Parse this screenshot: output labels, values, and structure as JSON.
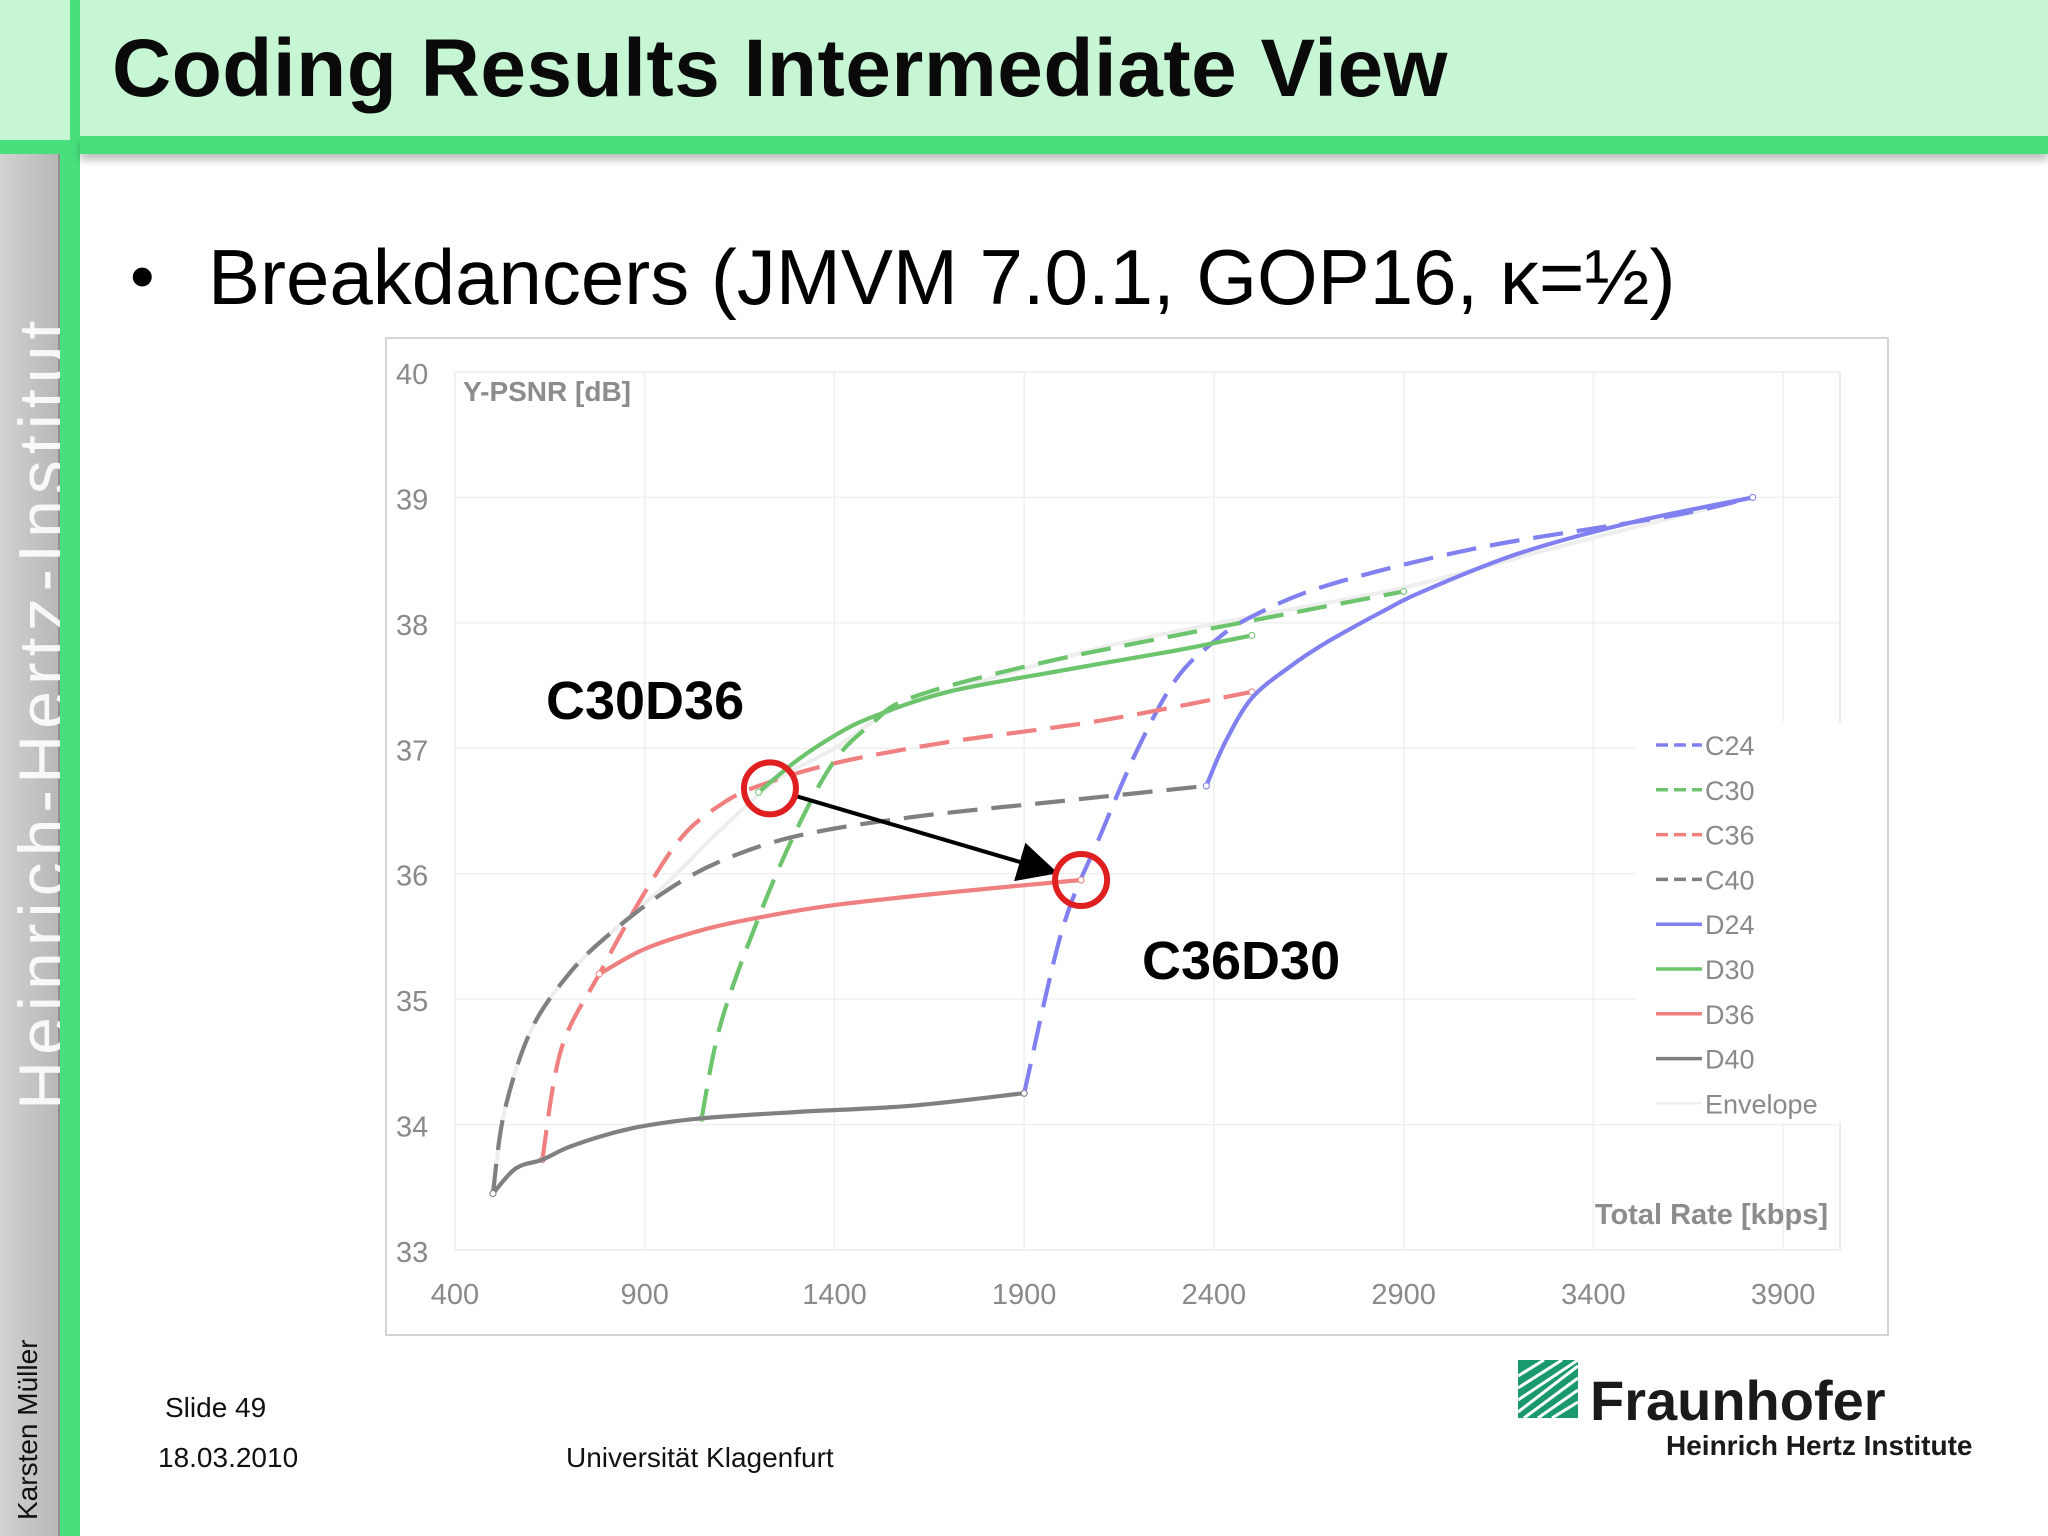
{
  "slide": {
    "title": "Coding Results Intermediate View",
    "bullet": "•",
    "subtitle": "Breakdancers  (JMVM 7.0.1, GOP16, κ=½)",
    "side_brand": "Heinrich-Hertz-Institut",
    "author": "Karsten Müller",
    "slide_number": "Slide 49",
    "date": "18.03.2010",
    "university": "Universität Klagenfurt",
    "logo_name": "Fraunhofer",
    "logo_sub": "Heinrich Hertz Institute",
    "annotation_start": "C30D36",
    "annotation_end": "C36D30"
  },
  "colors": {
    "header_bg": "#c6f6d4",
    "accent_green": "#47e07c",
    "blue": "#8080f0",
    "green": "#6cc46c",
    "red": "#f08080",
    "gray": "#808080",
    "envelope": "#eeeeee",
    "marker": "#e02020"
  },
  "chart_data": {
    "type": "line",
    "ylabel": "Y-PSNR [dB]",
    "xlabel": "Total Rate [kbps]",
    "xlim": [
      400,
      4050
    ],
    "ylim": [
      33,
      40
    ],
    "xticks": [
      "400",
      "900",
      "1400",
      "1900",
      "2400",
      "2900",
      "3400",
      "3900"
    ],
    "yticks": [
      "33",
      "34",
      "35",
      "36",
      "37",
      "38",
      "39",
      "40"
    ],
    "grid": true,
    "legend_position": "right",
    "series": [
      {
        "name": "C24",
        "color": "#8080f0",
        "dashed": true,
        "points": [
          [
            1900,
            34.25
          ],
          [
            2000,
            35.55
          ],
          [
            2100,
            36.3
          ],
          [
            2200,
            37.0
          ],
          [
            2300,
            37.55
          ],
          [
            2400,
            37.85
          ],
          [
            2500,
            38.05
          ],
          [
            2700,
            38.3
          ],
          [
            3100,
            38.6
          ],
          [
            3600,
            38.85
          ],
          [
            3820,
            39.0
          ]
        ]
      },
      {
        "name": "C30",
        "color": "#6cc46c",
        "dashed": true,
        "points": [
          [
            1050,
            34.05
          ],
          [
            1100,
            34.8
          ],
          [
            1200,
            35.65
          ],
          [
            1300,
            36.35
          ],
          [
            1400,
            36.9
          ],
          [
            1500,
            37.2
          ],
          [
            1600,
            37.4
          ],
          [
            1900,
            37.65
          ],
          [
            2300,
            37.9
          ],
          [
            2900,
            38.25
          ]
        ]
      },
      {
        "name": "C36",
        "color": "#f08080",
        "dashed": true,
        "points": [
          [
            630,
            33.72
          ],
          [
            680,
            34.6
          ],
          [
            780,
            35.2
          ],
          [
            900,
            35.85
          ],
          [
            1000,
            36.3
          ],
          [
            1100,
            36.55
          ],
          [
            1200,
            36.7
          ],
          [
            1400,
            36.88
          ],
          [
            1700,
            37.05
          ],
          [
            2100,
            37.22
          ],
          [
            2500,
            37.45
          ]
        ]
      },
      {
        "name": "C40",
        "color": "#808080",
        "dashed": true,
        "points": [
          [
            500,
            33.45
          ],
          [
            530,
            34.1
          ],
          [
            600,
            34.75
          ],
          [
            700,
            35.2
          ],
          [
            800,
            35.5
          ],
          [
            950,
            35.85
          ],
          [
            1100,
            36.1
          ],
          [
            1300,
            36.3
          ],
          [
            1600,
            36.45
          ],
          [
            2000,
            36.58
          ],
          [
            2380,
            36.7
          ]
        ]
      },
      {
        "name": "D24",
        "color": "#8080f0",
        "dashed": false,
        "points": [
          [
            2380,
            36.7
          ],
          [
            2430,
            37.05
          ],
          [
            2500,
            37.4
          ],
          [
            2600,
            37.65
          ],
          [
            2700,
            37.85
          ],
          [
            2850,
            38.1
          ],
          [
            2950,
            38.25
          ],
          [
            3200,
            38.55
          ],
          [
            3500,
            38.8
          ],
          [
            3820,
            39.0
          ]
        ]
      },
      {
        "name": "D30",
        "color": "#6cc46c",
        "dashed": false,
        "points": [
          [
            1200,
            36.65
          ],
          [
            1300,
            36.9
          ],
          [
            1400,
            37.1
          ],
          [
            1500,
            37.25
          ],
          [
            1700,
            37.45
          ],
          [
            2000,
            37.62
          ],
          [
            2300,
            37.78
          ],
          [
            2500,
            37.9
          ]
        ]
      },
      {
        "name": "D36",
        "color": "#f08080",
        "dashed": false,
        "points": [
          [
            780,
            35.2
          ],
          [
            900,
            35.4
          ],
          [
            1050,
            35.55
          ],
          [
            1200,
            35.65
          ],
          [
            1400,
            35.75
          ],
          [
            1700,
            35.85
          ],
          [
            2050,
            35.95
          ]
        ]
      },
      {
        "name": "D40",
        "color": "#808080",
        "dashed": false,
        "points": [
          [
            500,
            33.45
          ],
          [
            560,
            33.65
          ],
          [
            630,
            33.72
          ],
          [
            700,
            33.82
          ],
          [
            800,
            33.92
          ],
          [
            900,
            33.99
          ],
          [
            1050,
            34.05
          ],
          [
            1300,
            34.1
          ],
          [
            1600,
            34.15
          ],
          [
            1900,
            34.25
          ]
        ]
      },
      {
        "name": "Envelope",
        "color": "#eeeeee",
        "dashed": false,
        "points": [
          [
            500,
            33.45
          ],
          [
            530,
            34.1
          ],
          [
            600,
            34.75
          ],
          [
            700,
            35.2
          ],
          [
            800,
            35.5
          ],
          [
            950,
            35.9
          ],
          [
            1100,
            36.35
          ],
          [
            1250,
            36.75
          ],
          [
            1400,
            37.0
          ],
          [
            1550,
            37.3
          ],
          [
            1750,
            37.5
          ],
          [
            2100,
            37.8
          ],
          [
            2500,
            38.05
          ],
          [
            2900,
            38.28
          ],
          [
            3300,
            38.6
          ],
          [
            3820,
            39.0
          ]
        ]
      }
    ],
    "annotations": [
      {
        "label": "C30D36",
        "x": 1230,
        "y": 36.68
      },
      {
        "label": "C36D30",
        "x": 2050,
        "y": 35.95
      }
    ]
  }
}
